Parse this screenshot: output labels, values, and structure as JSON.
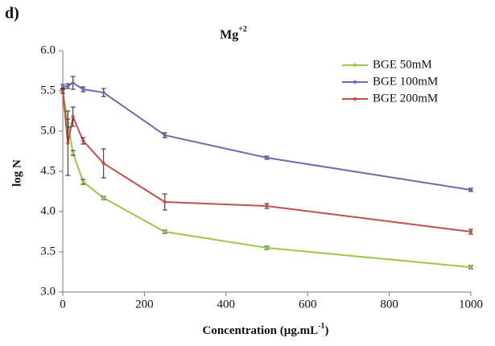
{
  "panel_label": "d)",
  "chart_data": {
    "type": "line",
    "title": "Mg",
    "title_superscript": "+2",
    "xlabel": {
      "text": "Concentration (µg.mL",
      "superscript": "-1",
      "text_end": ")"
    },
    "ylabel": "log N",
    "x": [
      0,
      12.5,
      25,
      50,
      100,
      250,
      500,
      1000
    ],
    "series": [
      {
        "name": "BGE 50mM",
        "color": "#9bc84a",
        "values": [
          5.5,
          5.1,
          4.73,
          4.37,
          4.17,
          3.75,
          3.55,
          3.31
        ],
        "errors": [
          0.03,
          0.05,
          0.03,
          0.03,
          0.02,
          0.02,
          0.02,
          0.02
        ]
      },
      {
        "name": "BGE 100mM",
        "color": "#7766b0",
        "values": [
          5.55,
          5.56,
          5.6,
          5.52,
          5.48,
          4.95,
          4.67,
          4.27
        ],
        "errors": [
          0.03,
          0.03,
          0.08,
          0.03,
          0.05,
          0.03,
          0.02,
          0.02
        ]
      },
      {
        "name": "BGE 200mM",
        "color": "#c0504d",
        "values": [
          5.5,
          4.85,
          5.18,
          4.88,
          4.6,
          4.12,
          4.07,
          3.75
        ],
        "errors": [
          0.03,
          0.4,
          0.12,
          0.04,
          0.18,
          0.1,
          0.03,
          0.03
        ]
      }
    ],
    "xlim": [
      0,
      1000
    ],
    "xticks": [
      0,
      200,
      400,
      600,
      800,
      1000
    ],
    "ylim": [
      3,
      6
    ],
    "yticks": [
      {
        "value": 3,
        "label": "3.0"
      },
      {
        "value": 3.5,
        "label": "3.5"
      },
      {
        "value": 4,
        "label": "4.0"
      },
      {
        "value": 4.5,
        "label": "4.5"
      },
      {
        "value": 5,
        "label": "5.0"
      },
      {
        "value": 5.5,
        "label": "5.5"
      },
      {
        "value": 6,
        "label": "6.0"
      }
    ],
    "legend": "upper-right"
  }
}
